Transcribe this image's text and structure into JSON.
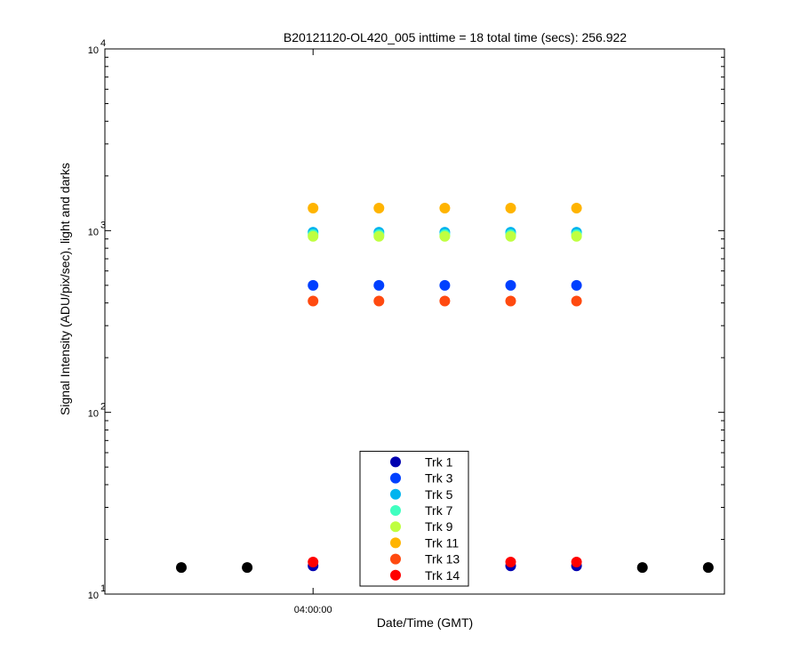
{
  "chart_data": {
    "type": "scatter",
    "title": "B20121120-OL420_005 inttime = 18 total time (secs): 256.922",
    "x_label": "Date/Time (GMT)",
    "y_label": "Signal Intensity (ADU/pix/sec), light and darks",
    "categories": [
      null,
      null,
      "04:00:00",
      null,
      null,
      null,
      null,
      null,
      null
    ],
    "ylim": [
      10,
      10000
    ],
    "log_y": true,
    "yticks": [
      {
        "value": 10,
        "label": "10",
        "exponent": "1"
      },
      {
        "value": 100,
        "label": "10",
        "exponent": "2"
      },
      {
        "value": 1000,
        "label": "10",
        "exponent": "3"
      },
      {
        "value": 10000,
        "label": "10",
        "exponent": "4"
      }
    ],
    "legend": "bottom",
    "series": [
      {
        "color": "#000000",
        "values": [
          14,
          14,
          null,
          null,
          null,
          null,
          null,
          14,
          14
        ]
      },
      {
        "name": "Trk 1",
        "color": "#0000b0",
        "values": [
          null,
          null,
          14.3,
          null,
          null,
          14.3,
          14.3,
          null,
          null
        ]
      },
      {
        "name": "Trk 3",
        "color": "#0040ff",
        "values": [
          null,
          null,
          500,
          500,
          500,
          500,
          500,
          null,
          null
        ]
      },
      {
        "name": "Trk 5",
        "color": "#00b4ef",
        "values": [
          null,
          null,
          980,
          980,
          980,
          980,
          980,
          null,
          null
        ]
      },
      {
        "name": "Trk 7",
        "color": "#40ffc0",
        "values": [
          null,
          null,
          950,
          950,
          950,
          950,
          950,
          null,
          null
        ]
      },
      {
        "name": "Trk 9",
        "color": "#bfff40",
        "values": [
          null,
          null,
          930,
          930,
          930,
          930,
          930,
          null,
          null
        ]
      },
      {
        "name": "Trk 11",
        "color": "#ffb400",
        "values": [
          null,
          null,
          1330,
          1330,
          1330,
          1330,
          1330,
          null,
          null
        ]
      },
      {
        "name": "Trk 13",
        "color": "#ff4a10",
        "values": [
          null,
          null,
          410,
          410,
          410,
          410,
          410,
          null,
          null
        ]
      },
      {
        "name": "Trk 14",
        "color": "#ff0000",
        "values": [
          null,
          null,
          15,
          null,
          null,
          15,
          15,
          null,
          null
        ]
      }
    ]
  }
}
